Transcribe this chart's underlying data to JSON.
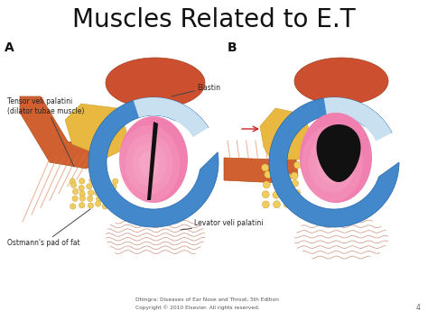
{
  "title": "Muscles Related to E.T",
  "title_fontsize": 20,
  "bg_color": "#ffffff",
  "label_A": "A",
  "label_B": "B",
  "labels": {
    "tensor_veli": "Tensor veli palatini\n(dilator tubae muscle)",
    "elastin": "Elastin",
    "ostmann": "Ostmann's pad of fat",
    "levator": "Levator veli palatini"
  },
  "footer": "Dhingra: Diseases of Ear Nose and Throat, 5th Edition\nCopyright © 2010 Elsevier. All rights reserved.",
  "page_num": "4",
  "blue_dark": "#4488cc",
  "blue_light": "#a0c8e8",
  "blue_lighter": "#c8e0f0",
  "pink_bright": "#f080b0",
  "pink_light": "#f8b0cc",
  "orange_muscle": "#d06030",
  "orange_muscle2": "#c85828",
  "orange_fat": "#e8b840",
  "orange_fat2": "#f0cc60",
  "red_levator": "#cc5030",
  "black_slit": "#111111",
  "arrow_color": "#444444",
  "line_color": "#555555"
}
